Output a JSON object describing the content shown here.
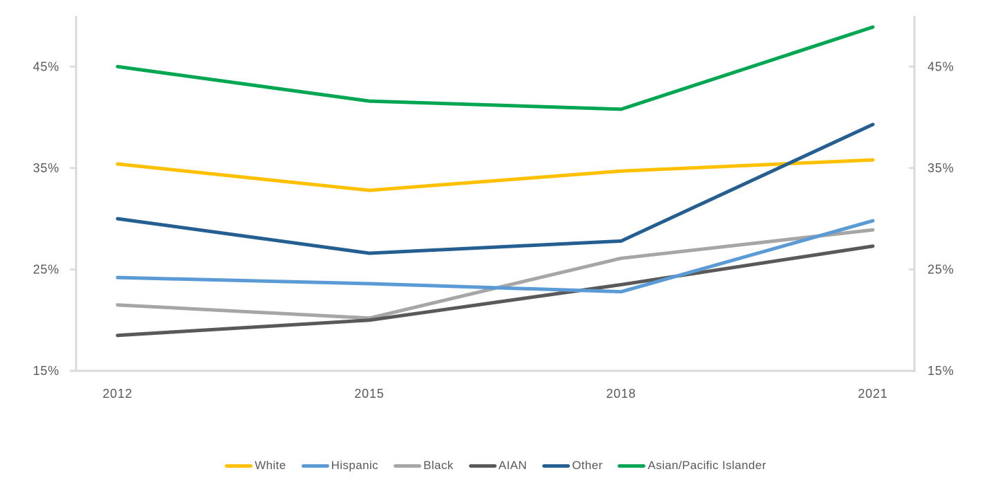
{
  "page": {
    "background": "#FFFFFF"
  },
  "chart_data": {
    "type": "line",
    "title": "",
    "xlabel": "",
    "ylabel": "",
    "categories": [
      "2012",
      "2015",
      "2018",
      "2021"
    ],
    "series": [
      {
        "name": "White",
        "color": "#FFC000",
        "values": [
          35.4,
          32.8,
          34.7,
          35.8
        ]
      },
      {
        "name": "Hispanic",
        "color": "#5B9BD5",
        "values": [
          24.2,
          23.6,
          22.8,
          29.8
        ]
      },
      {
        "name": "Black",
        "color": "#A6A6A6",
        "values": [
          21.5,
          20.2,
          26.1,
          28.9
        ]
      },
      {
        "name": "AIAN",
        "color": "#595959",
        "values": [
          18.5,
          20.0,
          23.5,
          27.3
        ]
      },
      {
        "name": "Other",
        "color": "#255E91",
        "values": [
          30.0,
          26.6,
          27.8,
          39.3
        ]
      },
      {
        "name": "Asian/Pacific Islander",
        "color": "#00A651",
        "values": [
          45.0,
          41.6,
          40.8,
          48.9
        ]
      }
    ],
    "y_ticks": [
      {
        "value": 15,
        "label": "15%"
      },
      {
        "value": 25,
        "label": "25%"
      },
      {
        "value": 35,
        "label": "35%"
      },
      {
        "value": 45,
        "label": "45%"
      }
    ],
    "ylim": [
      15,
      50
    ],
    "dual_y_axis": true,
    "grid": false,
    "legend_position": "bottom",
    "line_width": 5,
    "axis_color": "#D9D9D9",
    "text_color": "#595959"
  }
}
